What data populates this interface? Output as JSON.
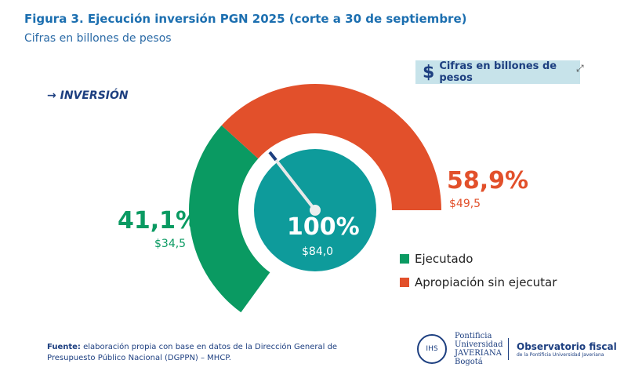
{
  "header": {
    "title": "Figura 3. Ejecución inversión PGN 2025 (corte a 30 de septiembre)",
    "subtitle": "Cifras en billones de pesos"
  },
  "badge": {
    "label": "Cifras en billones de pesos",
    "icon": "dollar-icon"
  },
  "section": "→ INVERSIÓN",
  "chart_data": {
    "type": "gauge",
    "total": {
      "label": "100%",
      "value": "$84,0",
      "color": "#0e9b9b"
    },
    "series": [
      {
        "name": "Ejecutado",
        "percent": 41.1,
        "percent_label": "41,1%",
        "value": 34.5,
        "value_label": "$34,5",
        "color": "#0a9a62"
      },
      {
        "name": "Apropiación sin ejecutar",
        "percent": 58.9,
        "percent_label": "58,9%",
        "value": 49.5,
        "value_label": "$49,5",
        "color": "#e2502b"
      }
    ]
  },
  "footer": {
    "source_label": "Fuente:",
    "source_text": " elaboración propia con base en datos de la Dirección General de Presupuesto Público Nacional (DGPPN) – MHCP."
  },
  "logos": {
    "university": "Pontificia Universidad JAVERIANA Bogotá",
    "observatory": "Observatorio fiscal",
    "observatory_sub": "de la Pontificia Universidad Javeriana"
  }
}
